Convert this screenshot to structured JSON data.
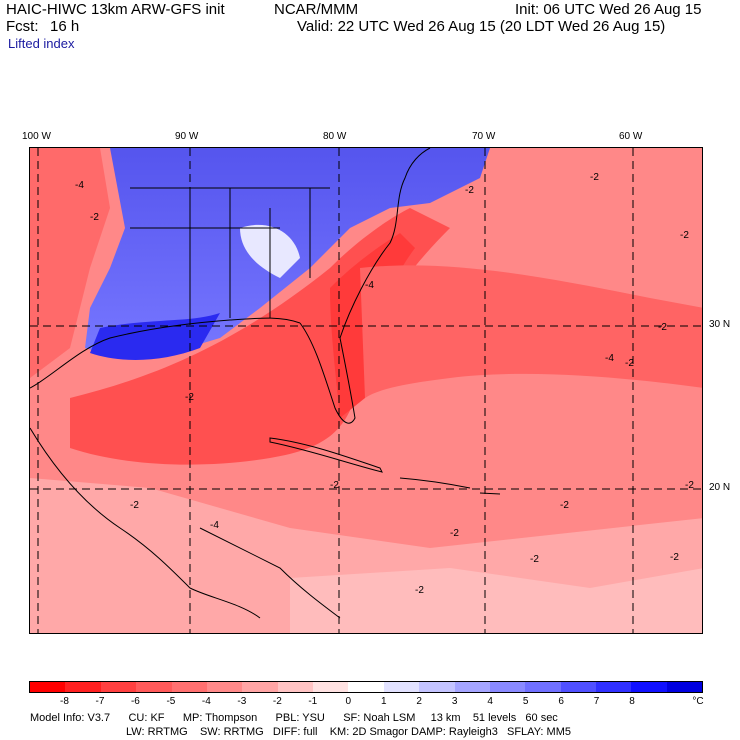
{
  "header": {
    "model_title": "HAIC-HIWC 13km ARW-GFS init",
    "center": "NCAR/MMM",
    "init": "Init: 06 UTC Wed 26 Aug 15",
    "fcst_label": "Fcst:",
    "fcst_value": "16 h",
    "valid": "Valid: 22 UTC Wed 26 Aug 15 (20 LDT Wed 26 Aug 15)",
    "field": "Lifted index"
  },
  "map": {
    "lon_labels": [
      "100 W",
      "90 W",
      "80 W",
      "70 W",
      "60 W"
    ],
    "lat_labels": [
      "30 N",
      "20 N"
    ],
    "contour_labels": [
      "-4",
      "-2",
      "-4",
      "-2",
      "-2",
      "-2",
      "-2",
      "-2",
      "-2",
      "-2",
      "-4",
      "-2",
      "-4",
      "-2",
      "-2",
      "-2",
      "-2",
      "-2",
      "-2"
    ]
  },
  "colorbar": {
    "ticks": [
      "-8",
      "-7",
      "-6",
      "-5",
      "-4",
      "-3",
      "-2",
      "-1",
      "0",
      "1",
      "2",
      "3",
      "4",
      "5",
      "6",
      "7",
      "8"
    ],
    "unit": "°C",
    "colors": [
      "#ff0000",
      "#ff2020",
      "#ff4040",
      "#ff5a5a",
      "#ff7070",
      "#ff8a8a",
      "#ffa5a5",
      "#ffc4c4",
      "#ffe2e2",
      "#ffffff",
      "#e2e2ff",
      "#c4c4ff",
      "#a5a5ff",
      "#8a8aff",
      "#7070ff",
      "#5050ff",
      "#3030ff",
      "#1010ff",
      "#0000e0"
    ]
  },
  "footer": {
    "line1": "Model Info: V3.7      CU: KF      MP: Thompson      PBL: YSU      SF: Noah LSM     13 km    51 levels   60 sec",
    "line2": "LW: RRTMG    SW: RRTMG   DIFF: full    KM: 2D Smagor DAMP: Rayleigh3   SFLAY: MM5"
  }
}
